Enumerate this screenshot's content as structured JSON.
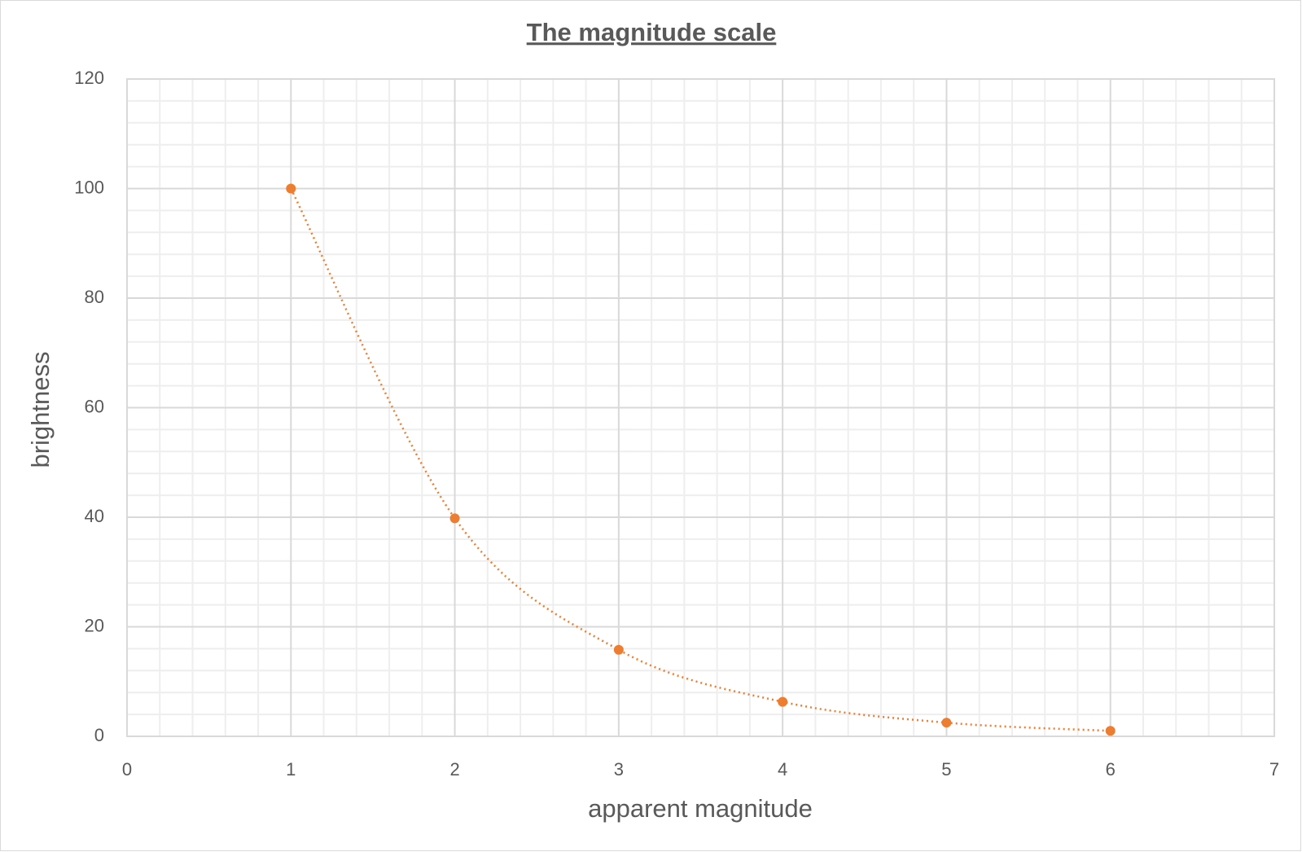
{
  "chart_data": {
    "type": "scatter",
    "title": "The magnitude scale",
    "x_label": "apparent magnitude",
    "y_label": "brightness",
    "series": [
      {
        "name": "brightness",
        "color": "#ed7d31",
        "x": [
          1,
          2,
          3,
          4,
          5,
          6
        ],
        "values": [
          100,
          39.8,
          15.8,
          6.3,
          2.5,
          1
        ]
      }
    ],
    "xlim": [
      0,
      7
    ],
    "xticks": [
      0,
      1,
      2,
      3,
      4,
      5,
      6,
      7
    ],
    "ylim": [
      0,
      120
    ],
    "yticks": [
      0,
      20,
      40,
      60,
      80,
      100,
      120
    ],
    "grid": true,
    "minor_grid": true,
    "line_style": "dotted-smooth"
  }
}
